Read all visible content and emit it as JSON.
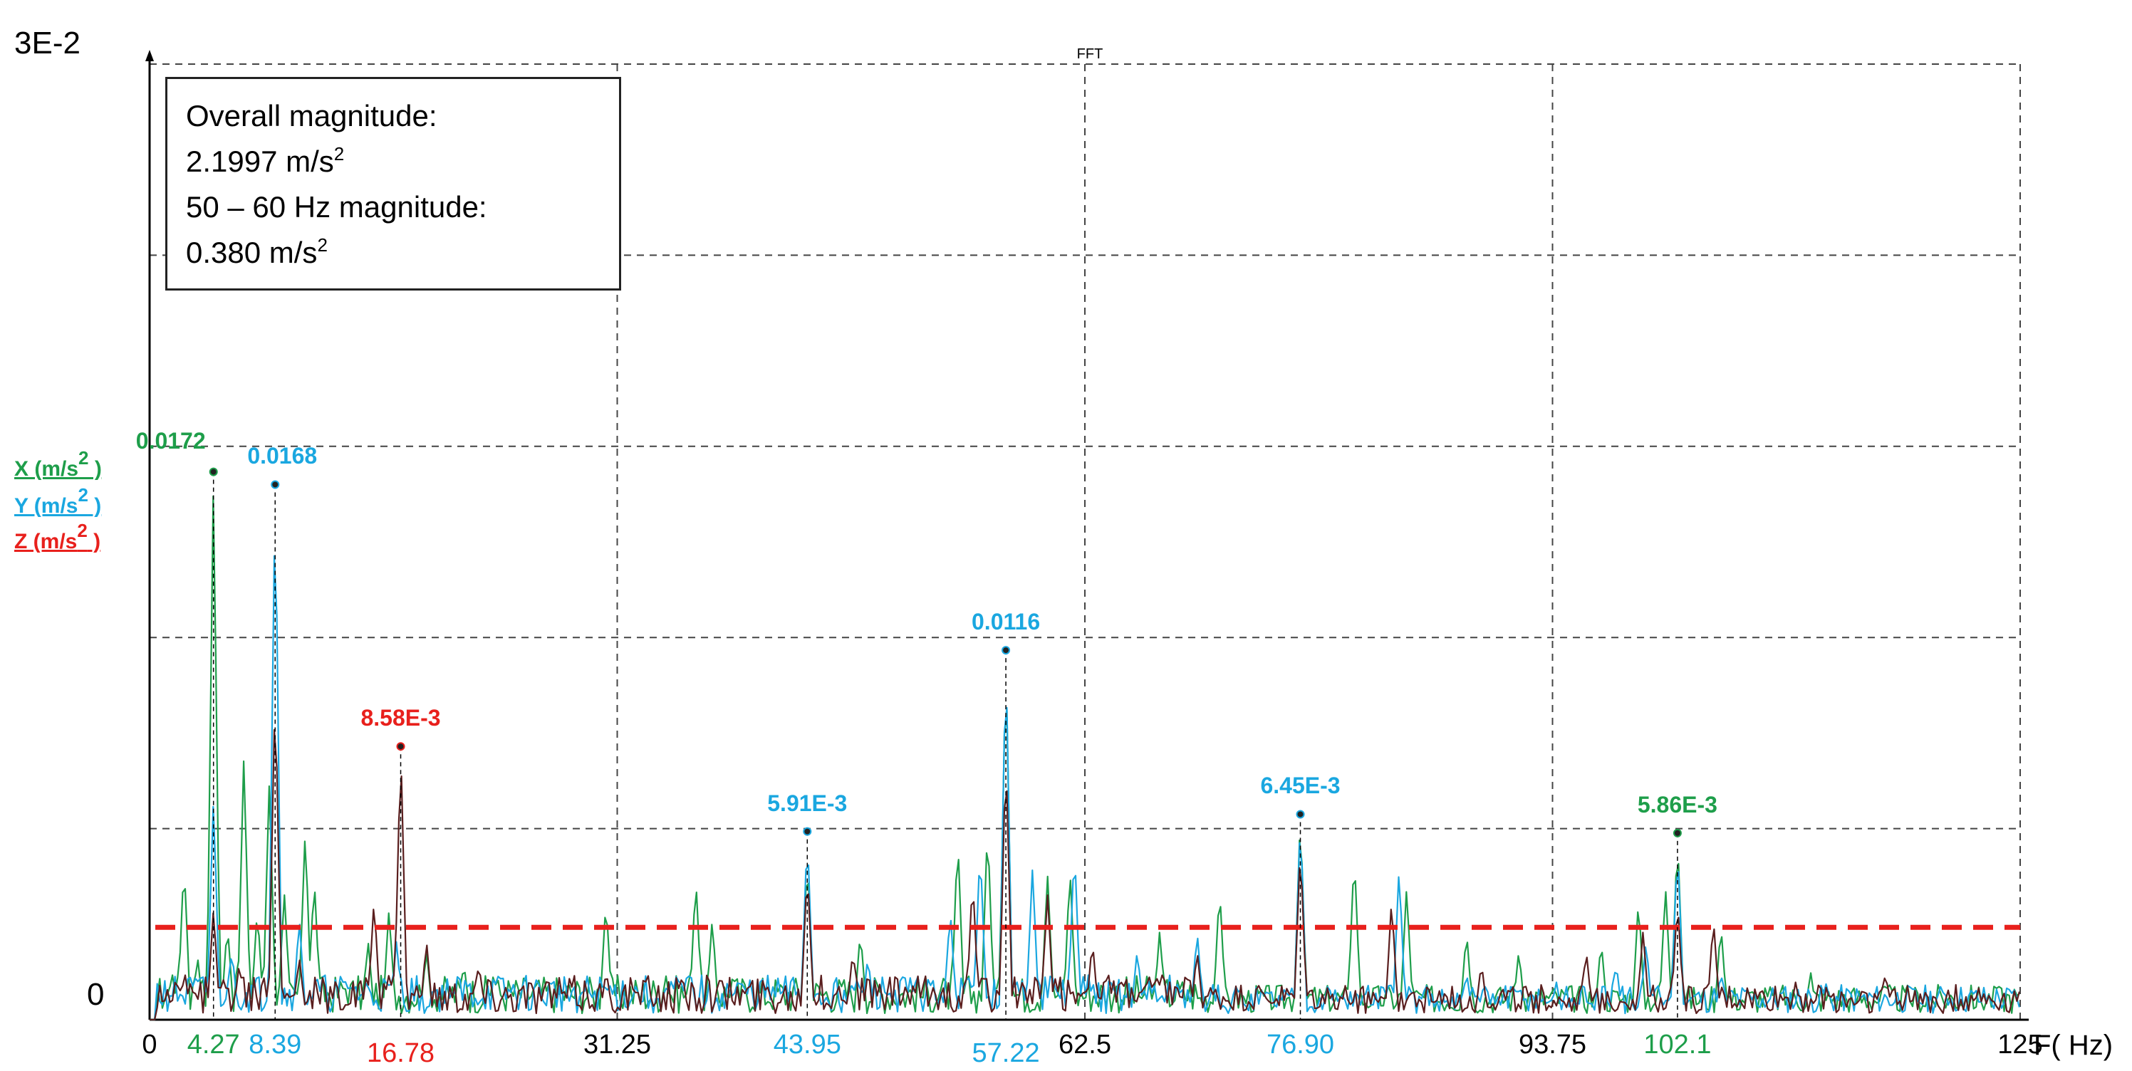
{
  "info": {
    "line1": "Overall magnitude:",
    "line2_value": "2.1997 m/s",
    "line2_exp": "2",
    "line3": "50 – 60 Hz magnitude:",
    "line4_value": "0.380 m/s",
    "line4_exp": "2"
  },
  "chart_data": {
    "type": "line",
    "title": "FFT",
    "xlabel": "F( Hz)",
    "y_top_label": "3E-2",
    "y_bottom_label": "0",
    "xlim": [
      0,
      125
    ],
    "ylim": [
      0,
      0.03
    ],
    "grid": true,
    "x_ticks_black": [
      "0",
      "31.25",
      "62.5",
      "93.75",
      "125"
    ],
    "x_ticks_colored": [
      {
        "label": "4.27",
        "color": "#1e9e4a"
      },
      {
        "label": "8.39",
        "color": "#1aa7e0"
      },
      {
        "label": "16.78",
        "color": "#e8201c"
      },
      {
        "label": "43.95",
        "color": "#1aa7e0"
      },
      {
        "label": "57.22",
        "color": "#1aa7e0"
      },
      {
        "label": "76.90",
        "color": "#1aa7e0"
      },
      {
        "label": "102.1",
        "color": "#1e9e4a"
      }
    ],
    "legend": {
      "x": {
        "pre": "X (m/s",
        "exp": "2",
        "post": " )",
        "color": "#1e9e4a"
      },
      "y": {
        "pre": "Y (m/s",
        "exp": "2",
        "post": " )",
        "color": "#1aa7e0"
      },
      "z": {
        "pre": "Z (m/s",
        "exp": "2",
        "post": " )",
        "color": "#e8201c"
      }
    },
    "threshold": {
      "y": 0.0029,
      "color": "#e8201c",
      "style": "dashed"
    },
    "peaks": [
      {
        "axis": "X",
        "x": 4.27,
        "y": 0.0172,
        "label": "0.0172",
        "color": "#1e9e4a"
      },
      {
        "axis": "Y",
        "x": 8.39,
        "y": 0.0168,
        "label": "0.0168",
        "color": "#1aa7e0"
      },
      {
        "axis": "Z",
        "x": 16.78,
        "y": 0.00858,
        "label": "8.58E-3",
        "color": "#e8201c"
      },
      {
        "axis": "Y",
        "x": 43.95,
        "y": 0.00591,
        "label": "5.91E-3",
        "color": "#1aa7e0"
      },
      {
        "axis": "Y",
        "x": 57.22,
        "y": 0.0116,
        "label": "0.0116",
        "color": "#1aa7e0"
      },
      {
        "axis": "Y",
        "x": 76.9,
        "y": 0.00645,
        "label": "6.45E-3",
        "color": "#1aa7e0"
      },
      {
        "axis": "X",
        "x": 102.1,
        "y": 0.00586,
        "label": "5.86E-3",
        "color": "#1e9e4a"
      }
    ],
    "series": [
      {
        "name": "X (m/s2 )",
        "color": "#1e9e4a",
        "points": [
          [
            1.5,
            0.0015
          ],
          [
            2.3,
            0.005
          ],
          [
            3.2,
            0.002
          ],
          [
            4.27,
            0.0172
          ],
          [
            5.2,
            0.003
          ],
          [
            6.3,
            0.0083
          ],
          [
            7.2,
            0.0035
          ],
          [
            8.0,
            0.0075
          ],
          [
            9.0,
            0.004
          ],
          [
            10.4,
            0.006
          ],
          [
            11.0,
            0.0045
          ],
          [
            13.0,
            0.0012
          ],
          [
            14.6,
            0.0025
          ],
          [
            16.0,
            0.0035
          ],
          [
            18.5,
            0.0022
          ],
          [
            21.0,
            0.0018
          ],
          [
            23.0,
            0.0015
          ],
          [
            25.0,
            0.001
          ],
          [
            30.5,
            0.0038
          ],
          [
            34.5,
            0.0014
          ],
          [
            36.5,
            0.0045
          ],
          [
            37.6,
            0.0032
          ],
          [
            39.0,
            0.0015
          ],
          [
            43.95,
            0.0052
          ],
          [
            47.5,
            0.0028
          ],
          [
            54.0,
            0.0058
          ],
          [
            56.0,
            0.0062
          ],
          [
            57.22,
            0.0115
          ],
          [
            60.0,
            0.0046
          ],
          [
            61.5,
            0.0048
          ],
          [
            67.5,
            0.0028
          ],
          [
            71.5,
            0.0042
          ],
          [
            76.9,
            0.0065
          ],
          [
            80.5,
            0.0053
          ],
          [
            84.0,
            0.0042
          ],
          [
            88.0,
            0.0028
          ],
          [
            91.5,
            0.0022
          ],
          [
            97.0,
            0.0025
          ],
          [
            99.5,
            0.0038
          ],
          [
            101.3,
            0.0042
          ],
          [
            102.1,
            0.0058
          ],
          [
            105.0,
            0.003
          ],
          [
            111.0,
            0.0015
          ],
          [
            116.0,
            0.0012
          ],
          [
            123.5,
            0.0012
          ]
        ]
      },
      {
        "name": "Y (m/s2 )",
        "color": "#1aa7e0",
        "points": [
          [
            1.5,
            0.0008
          ],
          [
            3.0,
            0.0014
          ],
          [
            4.27,
            0.007
          ],
          [
            5.5,
            0.0022
          ],
          [
            8.39,
            0.0168
          ],
          [
            10.0,
            0.0032
          ],
          [
            13.5,
            0.0012
          ],
          [
            16.5,
            0.0025
          ],
          [
            20.0,
            0.0008
          ],
          [
            30.5,
            0.0012
          ],
          [
            36.0,
            0.0015
          ],
          [
            43.95,
            0.0059
          ],
          [
            48.0,
            0.002
          ],
          [
            53.5,
            0.0035
          ],
          [
            55.5,
            0.0055
          ],
          [
            57.22,
            0.0116
          ],
          [
            59.0,
            0.0048
          ],
          [
            61.8,
            0.0055
          ],
          [
            66.0,
            0.0022
          ],
          [
            70.0,
            0.0028
          ],
          [
            76.9,
            0.0064
          ],
          [
            83.5,
            0.0048
          ],
          [
            88.0,
            0.0015
          ],
          [
            94.0,
            0.0012
          ],
          [
            98.0,
            0.0018
          ],
          [
            100.0,
            0.0025
          ],
          [
            102.1,
            0.0055
          ],
          [
            105.0,
            0.0015
          ],
          [
            112.0,
            0.0012
          ],
          [
            120.0,
            0.0008
          ]
        ]
      },
      {
        "name": "Z (m/s2 )",
        "color": "#5a1e1e",
        "points": [
          [
            2.0,
            0.0008
          ],
          [
            4.27,
            0.0035
          ],
          [
            6.0,
            0.0018
          ],
          [
            8.39,
            0.0105
          ],
          [
            10.0,
            0.002
          ],
          [
            15.0,
            0.0038
          ],
          [
            16.78,
            0.0086
          ],
          [
            18.5,
            0.0025
          ],
          [
            22.0,
            0.0018
          ],
          [
            30.5,
            0.0015
          ],
          [
            38.0,
            0.0012
          ],
          [
            43.95,
            0.0048
          ],
          [
            47.0,
            0.0022
          ],
          [
            55.0,
            0.0045
          ],
          [
            57.22,
            0.0085
          ],
          [
            60.0,
            0.004
          ],
          [
            63.0,
            0.0025
          ],
          [
            70.0,
            0.0022
          ],
          [
            76.9,
            0.0055
          ],
          [
            83.0,
            0.0038
          ],
          [
            89.0,
            0.0018
          ],
          [
            96.0,
            0.0022
          ],
          [
            99.8,
            0.0028
          ],
          [
            102.1,
            0.0038
          ],
          [
            104.5,
            0.0032
          ],
          [
            110.0,
            0.0012
          ],
          [
            116.0,
            0.0015
          ],
          [
            122.0,
            0.0008
          ]
        ]
      }
    ]
  }
}
